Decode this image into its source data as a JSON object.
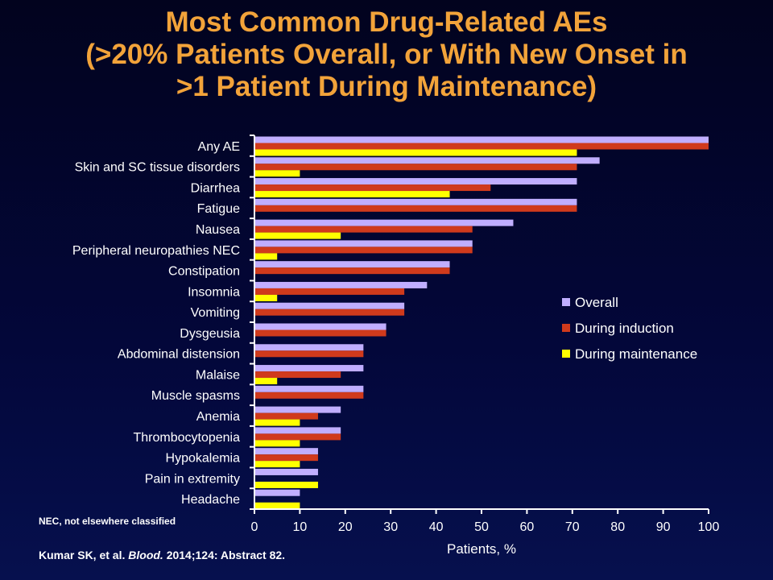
{
  "title_lines": [
    "Most Common Drug-Related AEs",
    "(>20% Patients Overall, or With New Onset in",
    ">1 Patient During Maintenance)"
  ],
  "footnote": "NEC, not elsewhere classified",
  "citation": {
    "authors": "Kumar SK, et al. ",
    "journal": "Blood.",
    "details": " 2014;124: Abstract 82."
  },
  "colors": {
    "overall": "#c0aeff",
    "induction": "#d03a1c",
    "maintenance": "#ffff00",
    "axis": "#ffffff",
    "text": "#ffffff"
  },
  "chart_data": {
    "type": "bar",
    "orientation": "horizontal",
    "xlabel": "Patients, %",
    "xlim": [
      0,
      100
    ],
    "xticks": [
      0,
      10,
      20,
      30,
      40,
      50,
      60,
      70,
      80,
      90,
      100
    ],
    "grid": false,
    "legend_position": "right",
    "categories": [
      "Any AE",
      "Skin and SC tissue disorders",
      "Diarrhea",
      "Fatigue",
      "Nausea",
      "Peripheral neuropathies NEC",
      "Constipation",
      "Insomnia",
      "Vomiting",
      "Dysgeusia",
      "Abdominal distension",
      "Malaise",
      "Muscle spasms",
      "Anemia",
      "Thrombocytopenia",
      "Hypokalemia",
      "Pain in extremity",
      "Headache"
    ],
    "series": [
      {
        "name": "Overall",
        "color_key": "overall",
        "values": [
          100,
          76,
          71,
          71,
          57,
          48,
          43,
          38,
          33,
          29,
          24,
          24,
          24,
          19,
          19,
          14,
          14,
          10
        ]
      },
      {
        "name": "During induction",
        "color_key": "induction",
        "values": [
          100,
          71,
          52,
          71,
          48,
          48,
          43,
          33,
          33,
          29,
          24,
          19,
          24,
          14,
          19,
          14,
          0,
          0
        ]
      },
      {
        "name": "During maintenance",
        "color_key": "maintenance",
        "values": [
          71,
          10,
          43,
          0,
          19,
          5,
          0,
          5,
          0,
          0,
          0,
          5,
          0,
          10,
          10,
          10,
          14,
          10
        ]
      }
    ]
  }
}
